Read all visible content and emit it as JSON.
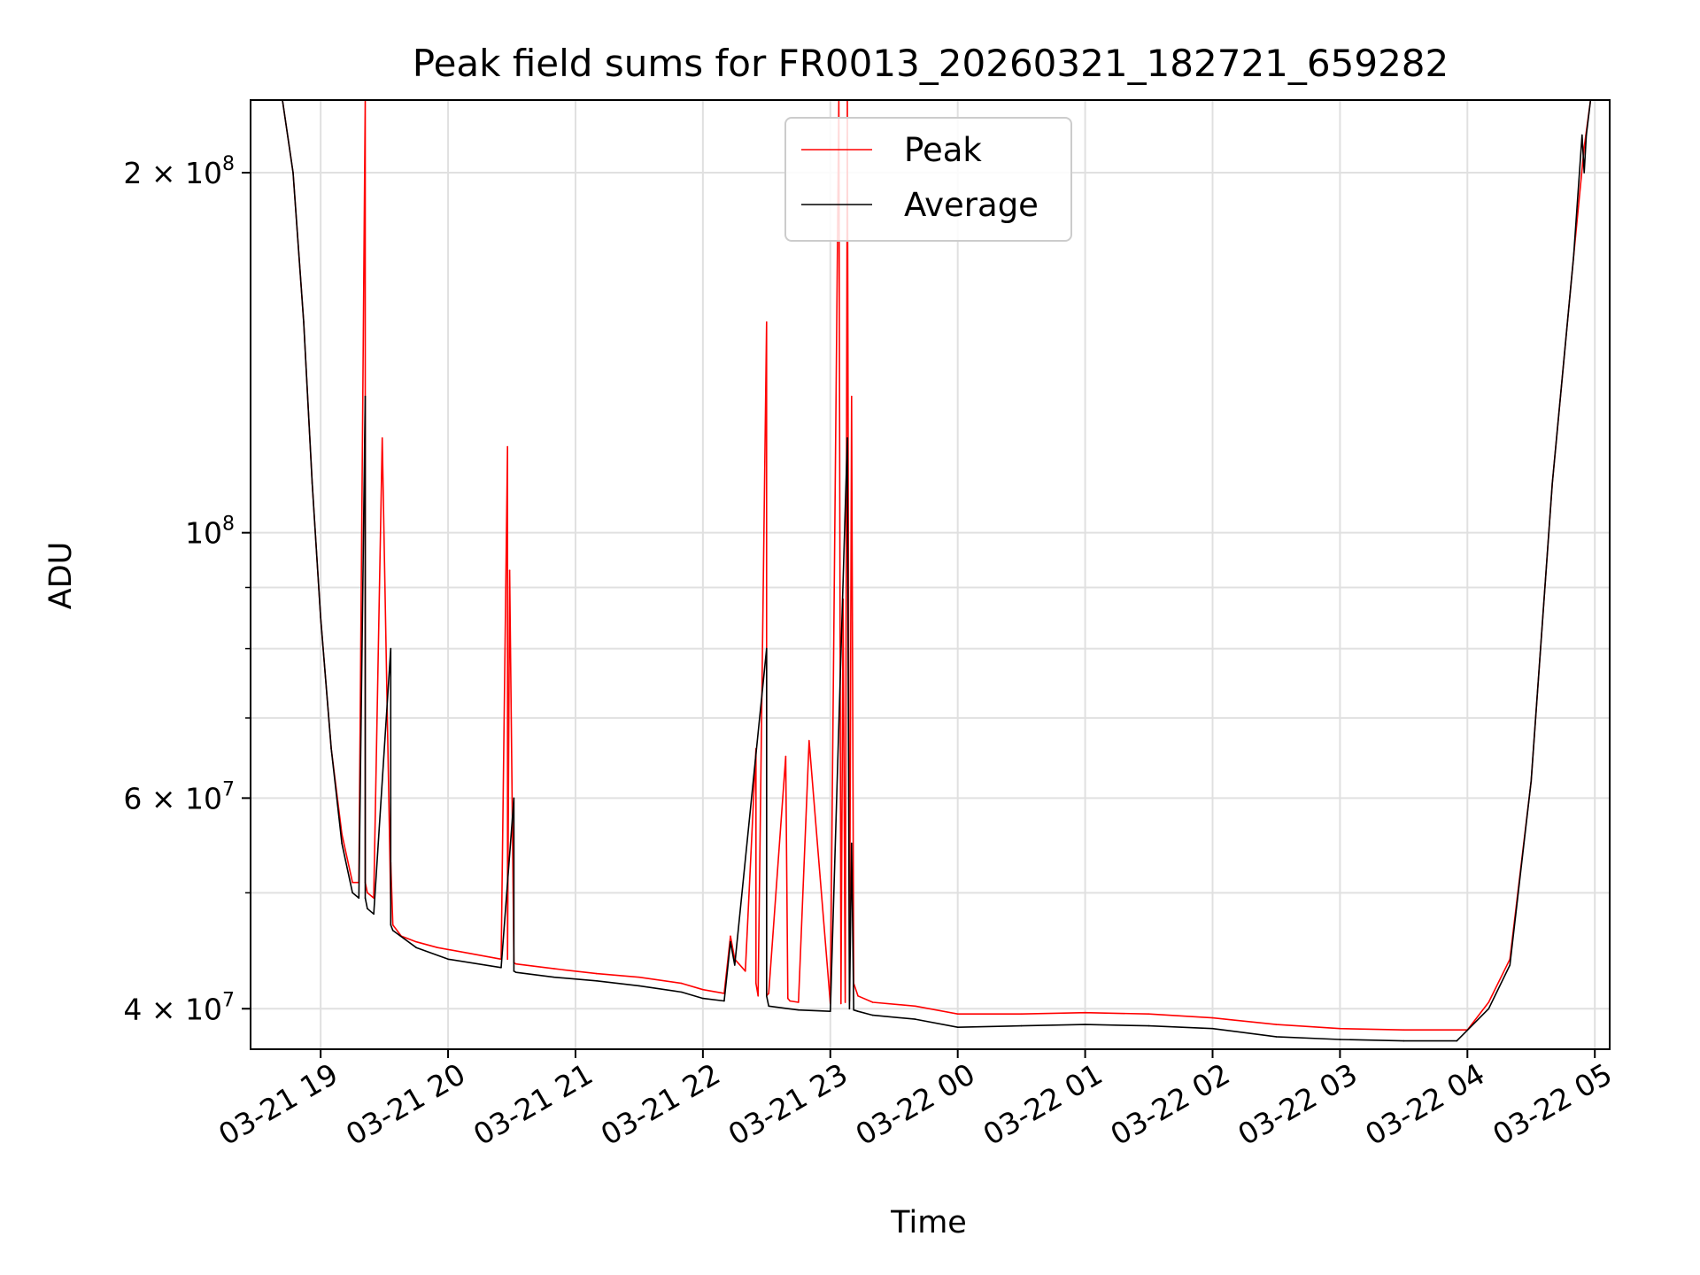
{
  "chart_data": {
    "type": "line",
    "title": "Peak field sums for FR0013_20260321_182721_659282",
    "xlabel": "Time",
    "ylabel": "ADU",
    "yscale": "log",
    "xlim": [
      "2026-03-21 18:27",
      "2026-03-22 05:07"
    ],
    "ylim": [
      37000000,
      230000000
    ],
    "grid": true,
    "legend": "upper center",
    "x_ticks": [
      "03-21 19",
      "03-21 20",
      "03-21 21",
      "03-21 22",
      "03-21 23",
      "03-22 00",
      "03-22 01",
      "03-22 02",
      "03-22 03",
      "03-22 04",
      "03-22 05"
    ],
    "y_ticks": [
      {
        "value": 40000000,
        "mantissa": "4",
        "exp": "7"
      },
      {
        "value": 60000000,
        "mantissa": "6",
        "exp": "7"
      },
      {
        "value": 100000000,
        "mantissa": "",
        "exp": "8"
      },
      {
        "value": 200000000,
        "mantissa": "2",
        "exp": "8"
      }
    ],
    "series": [
      {
        "name": "Peak",
        "color": "#ff0000",
        "x": [
          "2026-03-21 18:27",
          "2026-03-21 18:42",
          "2026-03-21 18:47",
          "2026-03-21 18:52",
          "2026-03-21 18:56",
          "2026-03-21 19:00",
          "2026-03-21 19:05",
          "2026-03-21 19:10",
          "2026-03-21 19:15",
          "2026-03-21 19:18",
          "2026-03-21 19:21",
          "2026-03-21 19:21",
          "2026-03-21 19:22",
          "2026-03-21 19:25",
          "2026-03-21 19:29",
          "2026-03-21 19:33",
          "2026-03-21 19:33",
          "2026-03-21 19:34",
          "2026-03-21 19:38",
          "2026-03-21 19:45",
          "2026-03-21 19:55",
          "2026-03-21 20:10",
          "2026-03-21 20:25",
          "2026-03-21 20:28",
          "2026-03-21 20:28",
          "2026-03-21 20:29",
          "2026-03-21 20:31",
          "2026-03-21 20:31",
          "2026-03-21 20:32",
          "2026-03-21 20:50",
          "2026-03-21 21:10",
          "2026-03-21 21:30",
          "2026-03-21 21:50",
          "2026-03-21 22:00",
          "2026-03-21 22:10",
          "2026-03-21 22:13",
          "2026-03-21 22:15",
          "2026-03-21 22:20",
          "2026-03-21 22:25",
          "2026-03-21 22:25",
          "2026-03-21 22:26",
          "2026-03-21 22:30",
          "2026-03-21 22:30",
          "2026-03-21 22:31",
          "2026-03-21 22:39",
          "2026-03-21 22:40",
          "2026-03-21 22:41",
          "2026-03-21 22:45",
          "2026-03-21 22:50",
          "2026-03-21 23:00",
          "2026-03-21 23:04",
          "2026-03-21 23:05",
          "2026-03-21 23:06",
          "2026-03-21 23:07",
          "2026-03-21 23:08",
          "2026-03-21 23:09",
          "2026-03-21 23:10",
          "2026-03-21 23:11",
          "2026-03-21 23:13",
          "2026-03-21 23:20",
          "2026-03-21 23:40",
          "2026-03-22 00:00",
          "2026-03-22 00:30",
          "2026-03-22 01:00",
          "2026-03-22 01:30",
          "2026-03-22 02:00",
          "2026-03-22 02:30",
          "2026-03-22 03:00",
          "2026-03-22 03:30",
          "2026-03-22 04:00",
          "2026-03-22 04:10",
          "2026-03-22 04:20",
          "2026-03-22 04:30",
          "2026-03-22 04:40",
          "2026-03-22 04:50",
          "2026-03-22 04:55",
          "2026-03-22 04:58",
          "2026-03-22 05:00"
        ],
        "y": [
          230000000,
          230000000,
          200000000,
          150000000,
          110000000,
          85000000,
          66000000,
          56000000,
          51000000,
          51000000,
          230000000,
          51000000,
          50000000,
          49500000,
          120000000,
          49000000,
          53000000,
          47000000,
          46000000,
          45500000,
          45000000,
          44500000,
          44000000,
          118000000,
          44000000,
          93000000,
          43800000,
          43700000,
          43600000,
          43200000,
          42800000,
          42500000,
          42000000,
          41500000,
          41200000,
          46000000,
          44000000,
          43000000,
          66000000,
          42000000,
          41000000,
          150000000,
          41000000,
          41200000,
          65000000,
          40800000,
          40600000,
          40500000,
          67000000,
          40400000,
          230000000,
          40400000,
          88000000,
          40500000,
          230000000,
          40600000,
          130000000,
          42000000,
          41000000,
          40500000,
          40200000,
          39600000,
          39600000,
          39700000,
          39600000,
          39300000,
          38800000,
          38500000,
          38400000,
          38400000,
          40500000,
          44000000,
          62000000,
          110000000,
          170000000,
          210000000,
          230000000,
          230000000
        ]
      },
      {
        "name": "Average",
        "color": "#000000",
        "x": [
          "2026-03-21 18:27",
          "2026-03-21 18:42",
          "2026-03-21 18:47",
          "2026-03-21 18:52",
          "2026-03-21 18:56",
          "2026-03-21 19:00",
          "2026-03-21 19:05",
          "2026-03-21 19:10",
          "2026-03-21 19:15",
          "2026-03-21 19:18",
          "2026-03-21 19:21",
          "2026-03-21 19:21",
          "2026-03-21 19:22",
          "2026-03-21 19:25",
          "2026-03-21 19:33",
          "2026-03-21 19:33",
          "2026-03-21 19:34",
          "2026-03-21 19:45",
          "2026-03-21 20:00",
          "2026-03-21 20:25",
          "2026-03-21 20:31",
          "2026-03-21 20:31",
          "2026-03-21 20:32",
          "2026-03-21 20:50",
          "2026-03-21 21:10",
          "2026-03-21 21:30",
          "2026-03-21 21:50",
          "2026-03-21 22:00",
          "2026-03-21 22:10",
          "2026-03-21 22:13",
          "2026-03-21 22:15",
          "2026-03-21 22:30",
          "2026-03-21 22:30",
          "2026-03-21 22:31",
          "2026-03-21 22:45",
          "2026-03-21 23:00",
          "2026-03-21 23:08",
          "2026-03-21 23:09",
          "2026-03-21 23:10",
          "2026-03-21 23:11",
          "2026-03-21 23:13",
          "2026-03-21 23:20",
          "2026-03-21 23:40",
          "2026-03-22 00:00",
          "2026-03-22 00:30",
          "2026-03-22 01:00",
          "2026-03-22 01:30",
          "2026-03-22 02:00",
          "2026-03-22 02:30",
          "2026-03-22 03:00",
          "2026-03-22 03:30",
          "2026-03-22 03:55",
          "2026-03-22 04:10",
          "2026-03-22 04:20",
          "2026-03-22 04:30",
          "2026-03-22 04:40",
          "2026-03-22 04:50",
          "2026-03-22 04:54",
          "2026-03-22 04:55",
          "2026-03-22 04:56",
          "2026-03-22 04:58",
          "2026-03-22 05:00"
        ],
        "y": [
          230000000,
          230000000,
          200000000,
          150000000,
          110000000,
          85000000,
          66000000,
          55000000,
          50000000,
          49500000,
          130000000,
          49500000,
          48500000,
          48000000,
          80000000,
          47000000,
          46500000,
          45000000,
          44000000,
          43300000,
          60000000,
          43000000,
          42900000,
          42500000,
          42200000,
          41800000,
          41300000,
          40800000,
          40600000,
          45500000,
          43500000,
          80000000,
          41000000,
          40200000,
          39900000,
          39800000,
          120000000,
          40000000,
          55000000,
          39900000,
          39800000,
          39500000,
          39200000,
          38600000,
          38700000,
          38800000,
          38700000,
          38500000,
          37900000,
          37700000,
          37600000,
          37600000,
          40000000,
          43500000,
          62000000,
          110000000,
          170000000,
          215000000,
          200000000,
          215000000,
          230000000,
          230000000
        ]
      }
    ]
  }
}
